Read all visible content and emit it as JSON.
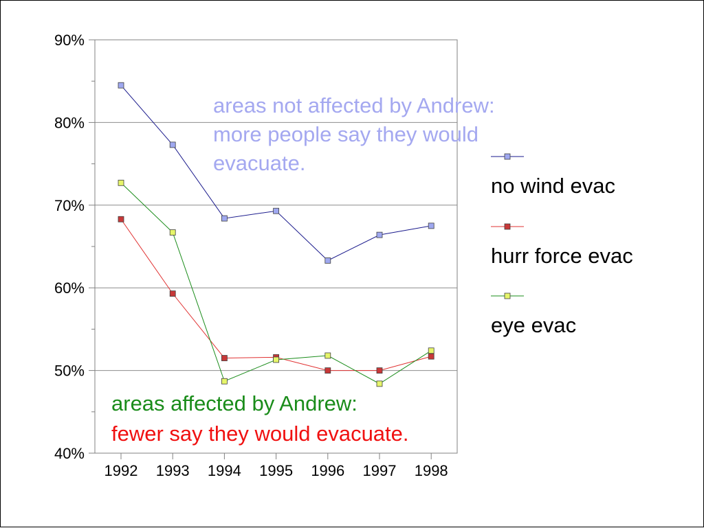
{
  "chart_data": {
    "type": "line",
    "title": "",
    "xlabel": "",
    "ylabel": "",
    "x": [
      "1992",
      "1993",
      "1994",
      "1995",
      "1996",
      "1997",
      "1998"
    ],
    "ylim": [
      40,
      90
    ],
    "yticks": [
      "40%",
      "50%",
      "60%",
      "70%",
      "80%",
      "90%"
    ],
    "grid": "horizontal major gridlines",
    "legend_position": "right",
    "series": [
      {
        "name": "no wind evac",
        "color": "#1a1a8c",
        "marker_color": "#9fa8f0",
        "values": [
          84.5,
          77.3,
          68.4,
          69.3,
          63.3,
          66.4,
          67.5
        ]
      },
      {
        "name": "hurr force evac",
        "color": "#e03030",
        "marker_color": "#c83838",
        "values": [
          68.3,
          59.3,
          51.5,
          51.6,
          50.0,
          50.0,
          51.7
        ]
      },
      {
        "name": "eye evac",
        "color": "#1a8c1a",
        "marker_color": "#e6f56a",
        "values": [
          72.7,
          66.7,
          48.7,
          51.3,
          51.8,
          48.4,
          52.4
        ]
      }
    ],
    "annotations": [
      {
        "lines": [
          "areas not affected by Andrew:",
          "more people say they would",
          "evacuate."
        ],
        "color": "#a4a8f0"
      },
      {
        "lines": [
          "areas affected by Andrew:"
        ],
        "color": "#1a8c1a"
      },
      {
        "lines": [
          "fewer say they would evacuate."
        ],
        "color": "#f01010"
      }
    ]
  }
}
